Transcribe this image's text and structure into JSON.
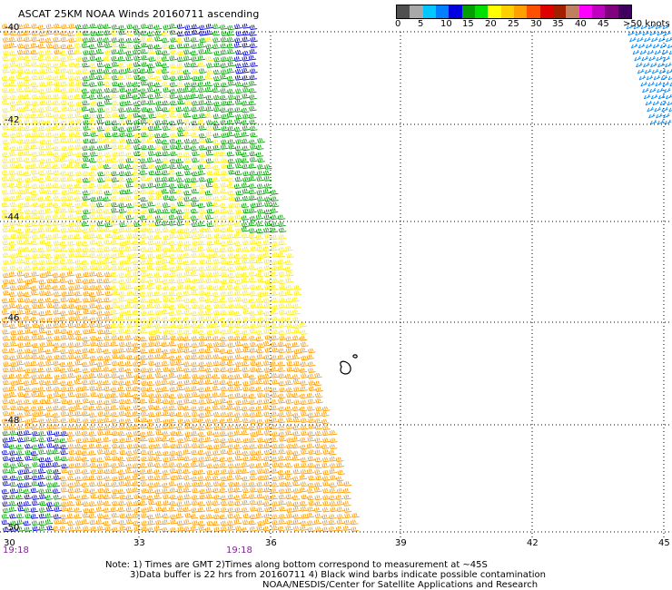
{
  "title": "ASCAT 25KM NOAA Winds 20160711 ascending",
  "colorbar": {
    "colors": [
      "#505050",
      "#a8a8a8",
      "#00c8ff",
      "#0080ff",
      "#0000e0",
      "#00a000",
      "#00e000",
      "#ffff00",
      "#ffd000",
      "#ffa000",
      "#ff5000",
      "#e00000",
      "#a02000",
      "#c08060",
      "#ff00ff",
      "#c000c0",
      "#800080",
      "#400060"
    ],
    "labels": [
      "0",
      "5",
      "10",
      "15",
      "20",
      "25",
      "30",
      "35",
      "40",
      "45",
      ">50 knots"
    ]
  },
  "lat_labels": [
    "-40",
    "-42",
    "-44",
    "-46",
    "-48",
    "-50"
  ],
  "lon_labels": [
    "30",
    "33",
    "36",
    "39",
    "42",
    "45"
  ],
  "times": [
    "19:18",
    "19:18"
  ],
  "notes": [
    "Note: 1) Times are GMT 2)Times along bottom correspond to measurement at ~45S",
    "3)Data buffer is 22 hrs from 20160711 4) Black wind barbs indicate possible contamination",
    "NOAA/NESDIS/Center for Satellite Applications and Research"
  ],
  "wind_colors": {
    "green": "#00a000",
    "blue": "#0000d0",
    "yellow": "#ffee00",
    "orange": "#ff9900",
    "light_blue": "#1090ff"
  },
  "island": "island-outline"
}
